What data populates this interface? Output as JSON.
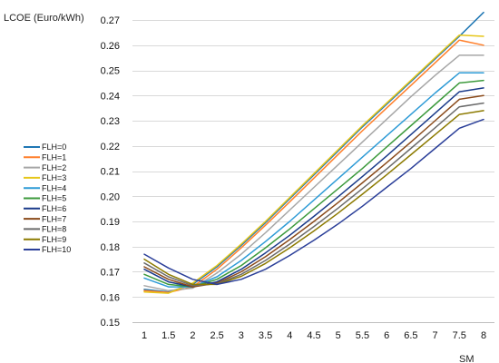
{
  "chart_data": {
    "type": "line",
    "title": "",
    "xlabel": "SM",
    "ylabel": "LCOE (Euro/kWh)",
    "x": [
      1,
      1.5,
      2,
      2.5,
      3,
      3.5,
      4,
      4.5,
      5,
      5.5,
      6,
      6.5,
      7,
      7.5,
      8
    ],
    "x_tick_labels": [
      "1",
      "1.5",
      "2",
      "2.5",
      "3",
      "3.5",
      "4",
      "4.5",
      "5",
      "5.5",
      "6",
      "6.5",
      "7",
      "7.5",
      "8"
    ],
    "ylim": [
      0.15,
      0.27
    ],
    "y_ticks": [
      0.15,
      0.16,
      0.17,
      0.18,
      0.19,
      0.2,
      0.21,
      0.22,
      0.23,
      0.24,
      0.25,
      0.26,
      0.27
    ],
    "y_tick_labels": [
      "0.15",
      "0.16",
      "0.17",
      "0.18",
      "0.19",
      "0.20",
      "0.21",
      "0.22",
      "0.23",
      "0.24",
      "0.25",
      "0.26",
      "0.27"
    ],
    "grid": "horizontal",
    "legend_position": "left",
    "series": [
      {
        "name": "FLH=0",
        "color": "#1f77b4",
        "values": [
          0.163,
          0.162,
          0.165,
          0.172,
          0.1805,
          0.1895,
          0.199,
          0.2085,
          0.218,
          0.2275,
          0.2365,
          0.2455,
          0.2545,
          0.2635,
          0.273
        ]
      },
      {
        "name": "FLH=1",
        "color": "#ff7f2a",
        "values": [
          0.1625,
          0.1618,
          0.164,
          0.171,
          0.1795,
          0.1885,
          0.1978,
          0.2072,
          0.2166,
          0.226,
          0.235,
          0.244,
          0.253,
          0.262,
          0.26
        ]
      },
      {
        "name": "FLH=2",
        "color": "#a6a6a6",
        "values": [
          0.1645,
          0.1625,
          0.1635,
          0.1695,
          0.177,
          0.1855,
          0.1945,
          0.2035,
          0.2125,
          0.2215,
          0.2305,
          0.2395,
          0.248,
          0.256,
          0.256
        ]
      },
      {
        "name": "FLH=3",
        "color": "#e6c619",
        "values": [
          0.162,
          0.1615,
          0.1655,
          0.1725,
          0.181,
          0.19,
          0.1995,
          0.209,
          0.2185,
          0.228,
          0.237,
          0.246,
          0.255,
          0.264,
          0.2635
        ]
      },
      {
        "name": "FLH=4",
        "color": "#2e9bd6",
        "values": [
          0.1675,
          0.164,
          0.164,
          0.168,
          0.1745,
          0.182,
          0.19,
          0.1985,
          0.207,
          0.2155,
          0.224,
          0.2325,
          0.241,
          0.249,
          0.249
        ]
      },
      {
        "name": "FLH=5",
        "color": "#3c9a3c",
        "values": [
          0.169,
          0.165,
          0.164,
          0.167,
          0.1725,
          0.1795,
          0.187,
          0.195,
          0.203,
          0.211,
          0.2195,
          0.228,
          0.2365,
          0.245,
          0.246
        ]
      },
      {
        "name": "FLH=6",
        "color": "#1a3a8a",
        "values": [
          0.171,
          0.166,
          0.164,
          0.166,
          0.171,
          0.1775,
          0.1845,
          0.192,
          0.1998,
          0.2078,
          0.216,
          0.2245,
          0.233,
          0.2415,
          0.243
        ]
      },
      {
        "name": "FLH=7",
        "color": "#8a4a1a",
        "values": [
          0.172,
          0.167,
          0.164,
          0.1655,
          0.17,
          0.176,
          0.1828,
          0.19,
          0.1975,
          0.2053,
          0.2133,
          0.2215,
          0.23,
          0.2385,
          0.24
        ]
      },
      {
        "name": "FLH=8",
        "color": "#6b6b6b",
        "values": [
          0.1735,
          0.168,
          0.1645,
          0.1652,
          0.169,
          0.1745,
          0.181,
          0.188,
          0.1953,
          0.203,
          0.2108,
          0.219,
          0.2272,
          0.2355,
          0.237
        ]
      },
      {
        "name": "FLH=9",
        "color": "#8c7a00",
        "values": [
          0.175,
          0.169,
          0.165,
          0.165,
          0.1682,
          0.1733,
          0.1795,
          0.1862,
          0.1933,
          0.2008,
          0.2085,
          0.2165,
          0.2245,
          0.2325,
          0.234
        ]
      },
      {
        "name": "FLH=10",
        "color": "#2b3f99",
        "values": [
          0.177,
          0.1715,
          0.167,
          0.165,
          0.167,
          0.171,
          0.1765,
          0.1825,
          0.189,
          0.196,
          0.2035,
          0.211,
          0.219,
          0.227,
          0.2305
        ]
      }
    ]
  }
}
